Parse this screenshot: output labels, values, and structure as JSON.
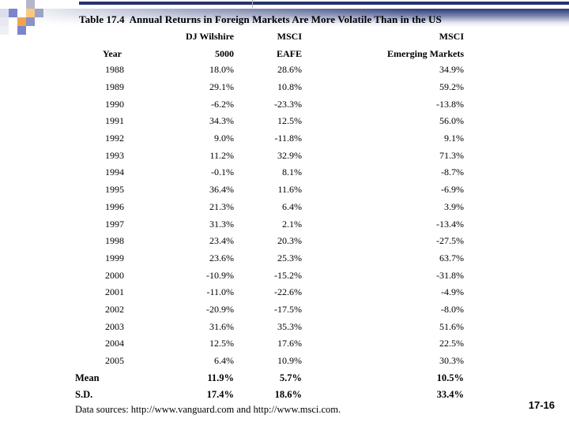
{
  "slide": {
    "title": "Table 17.4  Annual Returns in Foreign Markets Are More Volatile Than in the US",
    "slide_number": "17-16",
    "footnote": "Data sources: http://www.vanguard.com and http://www.msci.com."
  },
  "table": {
    "header_line1": {
      "col2": "DJ Wilshire",
      "col3": "MSCI",
      "col4": "MSCI"
    },
    "header_line2": {
      "col1": "Year",
      "col2": "5000",
      "col3": "EAFE",
      "col4": "Emerging Markets"
    },
    "rows": [
      [
        "1988",
        "18.0%",
        "28.6%",
        "34.9%"
      ],
      [
        "1989",
        "29.1%",
        "10.8%",
        "59.2%"
      ],
      [
        "1990",
        "-6.2%",
        "-23.3%",
        "-13.8%"
      ],
      [
        "1991",
        "34.3%",
        "12.5%",
        "56.0%"
      ],
      [
        "1992",
        "9.0%",
        "-11.8%",
        "9.1%"
      ],
      [
        "1993",
        "11.2%",
        "32.9%",
        "71.3%"
      ],
      [
        "1994",
        "-0.1%",
        "8.1%",
        "-8.7%"
      ],
      [
        "1995",
        "36.4%",
        "11.6%",
        "-6.9%"
      ],
      [
        "1996",
        "21.3%",
        "6.4%",
        "3.9%"
      ],
      [
        "1997",
        "31.3%",
        "2.1%",
        "-13.4%"
      ],
      [
        "1998",
        "23.4%",
        "20.3%",
        "-27.5%"
      ],
      [
        "1999",
        "23.6%",
        "25.3%",
        "63.7%"
      ],
      [
        "2000",
        "-10.9%",
        "-15.2%",
        "-31.8%"
      ],
      [
        "2001",
        "-11.0%",
        "-22.6%",
        "-4.9%"
      ],
      [
        "2002",
        "-20.9%",
        "-17.5%",
        "-8.0%"
      ],
      [
        "2003",
        "31.6%",
        "35.3%",
        "51.6%"
      ],
      [
        "2004",
        "12.5%",
        "17.6%",
        "22.5%"
      ],
      [
        "2005",
        "6.4%",
        "10.9%",
        "30.3%"
      ]
    ],
    "summary_rows": [
      [
        "Mean",
        "11.9%",
        "5.7%",
        "10.5%"
      ],
      [
        "S.D.",
        "17.4%",
        "18.6%",
        "33.4%"
      ]
    ]
  },
  "colors": {
    "accent_navy": "#27336e",
    "title_bar_top": "#2c3a78",
    "mosaic_cornflower": "#7b85cb",
    "mosaic_orange": "#f0a44e",
    "mosaic_light_orange": "#f9c87e",
    "mosaic_blue_gray": "#8b93c5",
    "mosaic_light_gray": "#dcdeed"
  }
}
